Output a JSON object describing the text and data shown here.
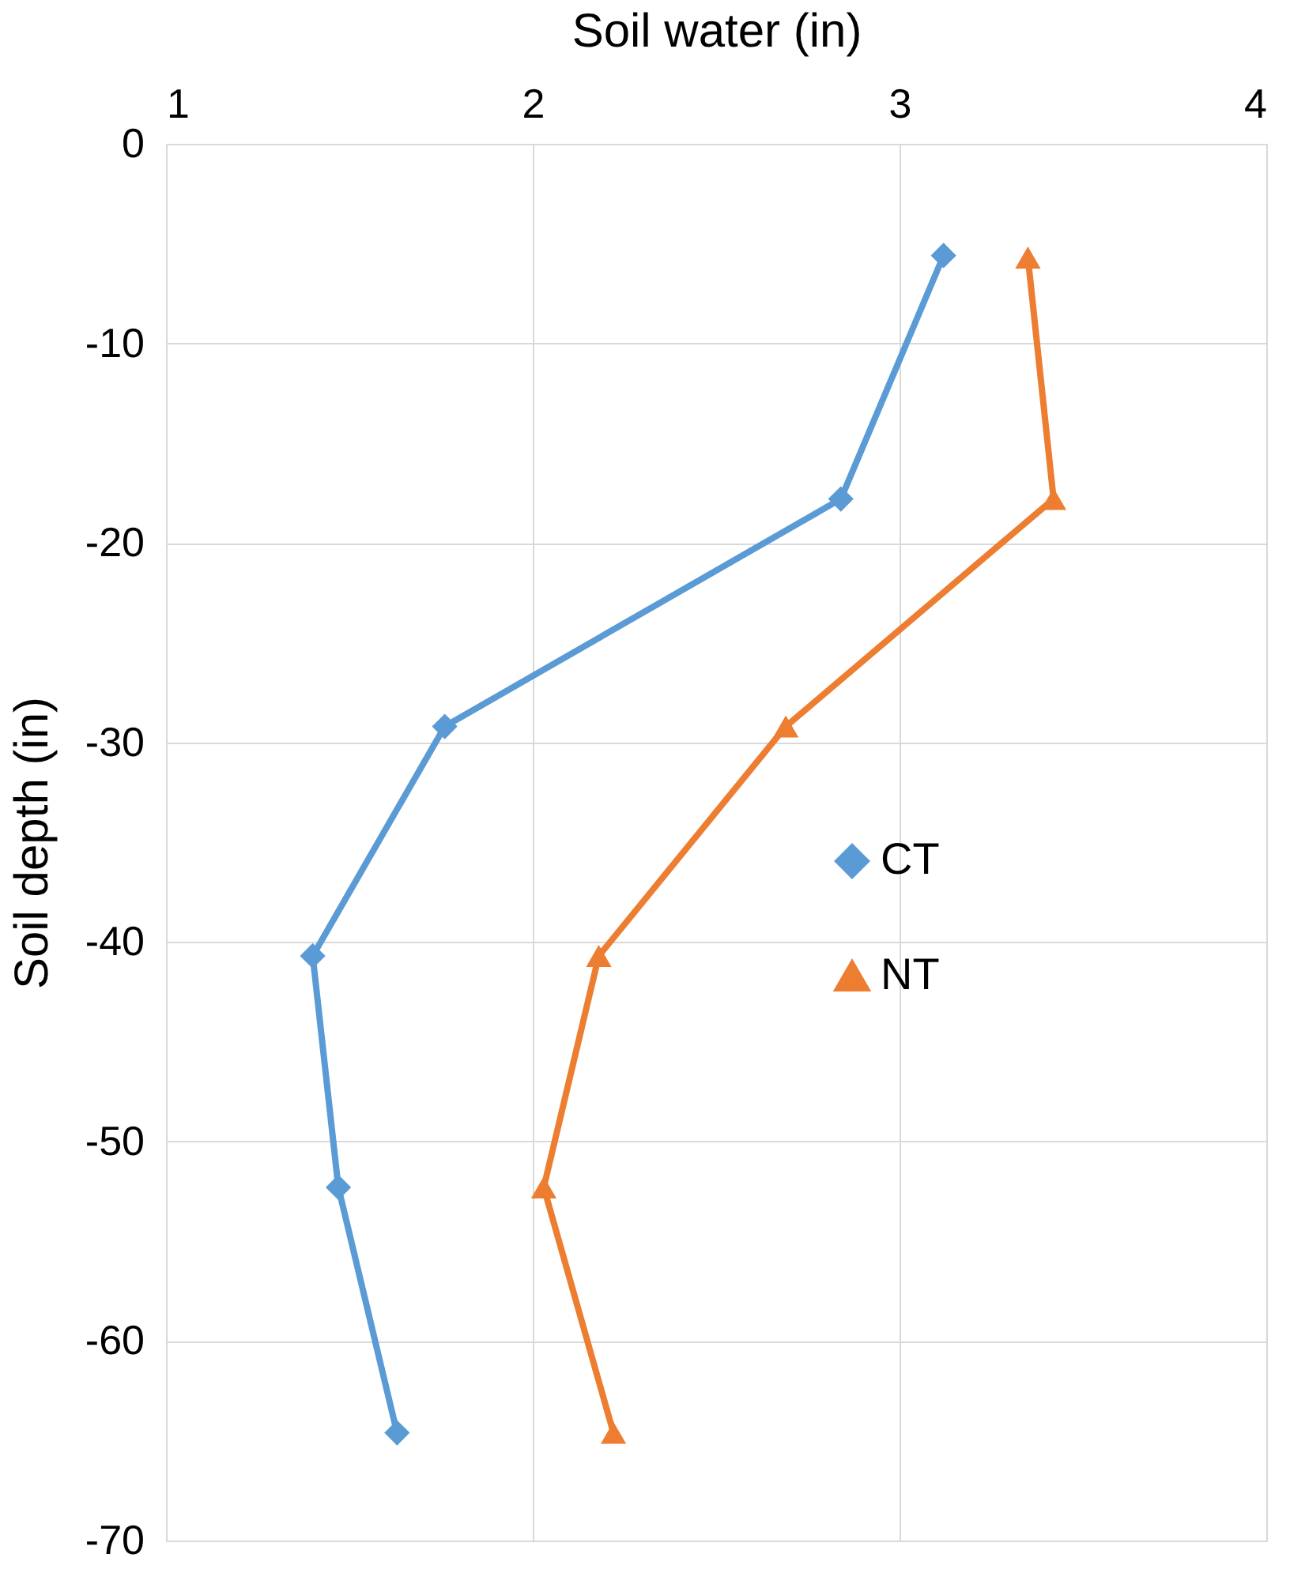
{
  "chart_data": {
    "type": "line",
    "xlabel": "Soil water (in)",
    "ylabel": "Soil depth (in)",
    "xlim": [
      1,
      4
    ],
    "xticks": [
      1,
      2,
      3,
      4
    ],
    "ylim": [
      -70,
      0
    ],
    "yticks": [
      0,
      -10,
      -20,
      -30,
      -40,
      -50,
      -60,
      -70
    ],
    "grid": true,
    "legend": "right",
    "series": [
      {
        "name": "CT",
        "color": "#5b9bd5",
        "marker": "diamond",
        "x": [
          3.12,
          2.84,
          1.76,
          1.4,
          1.47,
          1.63
        ],
        "values": [
          -5.6,
          -17.8,
          -29.2,
          -40.7,
          -52.3,
          -64.6
        ]
      },
      {
        "name": "NT",
        "color": "#ed7d31",
        "marker": "triangle",
        "x": [
          3.35,
          3.42,
          2.69,
          2.18,
          2.03,
          2.22
        ],
        "values": [
          -5.7,
          -17.8,
          -29.2,
          -40.7,
          -52.3,
          -64.6
        ]
      }
    ]
  }
}
